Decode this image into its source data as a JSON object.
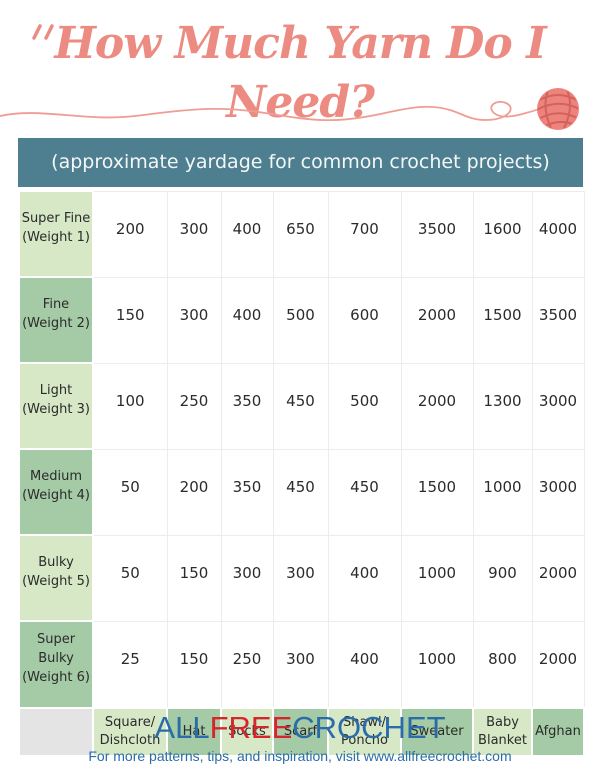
{
  "page": {
    "title": "How Much Yarn Do I Need?",
    "banner_text": "(approximate yardage for common crochet projects)"
  },
  "chart_data": {
    "type": "table",
    "title": "How Much Yarn Do I Need?",
    "subtitle": "(approximate yardage for common crochet projects)",
    "columns": [
      "Square/\nDishcloth",
      "Hat",
      "Socks",
      "Scarf",
      "Shawl/\nPoncho",
      "Sweater",
      "Baby\nBlanket",
      "Afghan"
    ],
    "rows": [
      {
        "label": "Super Fine\n(Weight 1)",
        "values": [
          200,
          300,
          400,
          650,
          700,
          3500,
          1600,
          4000
        ]
      },
      {
        "label": "Fine\n(Weight 2)",
        "values": [
          150,
          300,
          400,
          500,
          600,
          2000,
          1500,
          3500
        ]
      },
      {
        "label": "Light\n(Weight 3)",
        "values": [
          100,
          250,
          350,
          450,
          500,
          2000,
          1300,
          3000
        ]
      },
      {
        "label": "Medium\n(Weight 4)",
        "values": [
          50,
          200,
          350,
          450,
          450,
          1500,
          1000,
          3000
        ]
      },
      {
        "label": "Bulky\n(Weight 5)",
        "values": [
          50,
          150,
          300,
          300,
          400,
          1000,
          900,
          2000
        ]
      },
      {
        "label": "Super Bulky\n(Weight 6)",
        "values": [
          25,
          150,
          250,
          300,
          400,
          1000,
          800,
          2000
        ]
      }
    ]
  },
  "colors": {
    "title_pink": "#ec8b82",
    "yarn_ball_pink": "#ee837d",
    "yarn_strand_pink": "#d2625c",
    "banner_teal": "#4e7f90",
    "green_light": "#d7e8c6",
    "green_medium": "#a4cba6",
    "corner_gray": "#e4e4e4",
    "logo_blue": "#2b6ca8",
    "logo_red": "#d6262c"
  },
  "footer": {
    "logo_all": "ALL",
    "logo_free": "FREE",
    "logo_crochet": "CROCHET",
    "tagline": "For more patterns, tips, and inspiration, visit www.allfreecrochet.com"
  }
}
